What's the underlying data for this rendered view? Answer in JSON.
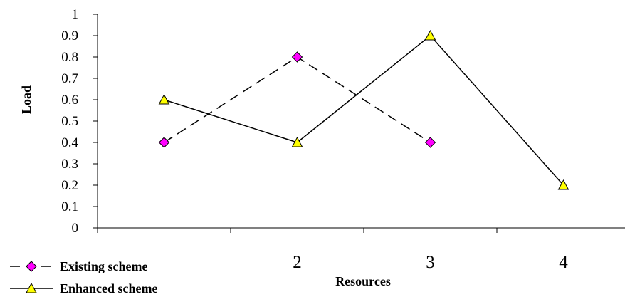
{
  "chart_data": {
    "type": "line",
    "xlabel": "Resources",
    "ylabel": "Load",
    "ylim": [
      0,
      1
    ],
    "yticks": [
      "0",
      "0.1",
      "0.2",
      "0.3",
      "0.4",
      "0.5",
      "0.6",
      "0.7",
      "0.8",
      "0.9",
      "1"
    ],
    "x_tick_labels": [
      "2",
      "3",
      "4"
    ],
    "grid": false,
    "legend_position": "bottom-left",
    "series": [
      {
        "name": "Existing scheme",
        "x": [
          1,
          2,
          3
        ],
        "values": [
          0.4,
          0.8,
          0.4
        ],
        "line_style": "dashed",
        "marker": "diamond",
        "marker_color": "#ff00ff"
      },
      {
        "name": "Enhanced scheme",
        "x": [
          1,
          2,
          3,
          4
        ],
        "values": [
          0.6,
          0.4,
          0.9,
          0.2
        ],
        "line_style": "solid",
        "marker": "triangle",
        "marker_color": "#ffff00"
      }
    ]
  }
}
